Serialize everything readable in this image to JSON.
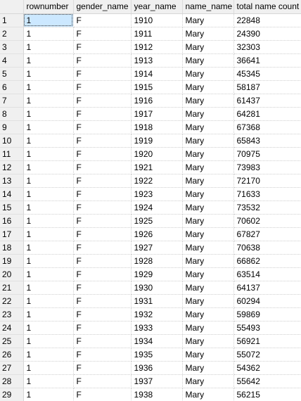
{
  "columns": [
    "rownumber",
    "gender_name",
    "year_name",
    "name_name",
    "total name count"
  ],
  "rows": [
    {
      "row_header": "1",
      "rownumber": "1",
      "gender_name": "F",
      "year_name": "1910",
      "name_name": "Mary",
      "total_name_count": "22848"
    },
    {
      "row_header": "2",
      "rownumber": "1",
      "gender_name": "F",
      "year_name": "1911",
      "name_name": "Mary",
      "total_name_count": "24390"
    },
    {
      "row_header": "3",
      "rownumber": "1",
      "gender_name": "F",
      "year_name": "1912",
      "name_name": "Mary",
      "total_name_count": "32303"
    },
    {
      "row_header": "4",
      "rownumber": "1",
      "gender_name": "F",
      "year_name": "1913",
      "name_name": "Mary",
      "total_name_count": "36641"
    },
    {
      "row_header": "5",
      "rownumber": "1",
      "gender_name": "F",
      "year_name": "1914",
      "name_name": "Mary",
      "total_name_count": "45345"
    },
    {
      "row_header": "6",
      "rownumber": "1",
      "gender_name": "F",
      "year_name": "1915",
      "name_name": "Mary",
      "total_name_count": "58187"
    },
    {
      "row_header": "7",
      "rownumber": "1",
      "gender_name": "F",
      "year_name": "1916",
      "name_name": "Mary",
      "total_name_count": "61437"
    },
    {
      "row_header": "8",
      "rownumber": "1",
      "gender_name": "F",
      "year_name": "1917",
      "name_name": "Mary",
      "total_name_count": "64281"
    },
    {
      "row_header": "9",
      "rownumber": "1",
      "gender_name": "F",
      "year_name": "1918",
      "name_name": "Mary",
      "total_name_count": "67368"
    },
    {
      "row_header": "10",
      "rownumber": "1",
      "gender_name": "F",
      "year_name": "1919",
      "name_name": "Mary",
      "total_name_count": "65843"
    },
    {
      "row_header": "11",
      "rownumber": "1",
      "gender_name": "F",
      "year_name": "1920",
      "name_name": "Mary",
      "total_name_count": "70975"
    },
    {
      "row_header": "12",
      "rownumber": "1",
      "gender_name": "F",
      "year_name": "1921",
      "name_name": "Mary",
      "total_name_count": "73983"
    },
    {
      "row_header": "13",
      "rownumber": "1",
      "gender_name": "F",
      "year_name": "1922",
      "name_name": "Mary",
      "total_name_count": "72170"
    },
    {
      "row_header": "14",
      "rownumber": "1",
      "gender_name": "F",
      "year_name": "1923",
      "name_name": "Mary",
      "total_name_count": "71633"
    },
    {
      "row_header": "15",
      "rownumber": "1",
      "gender_name": "F",
      "year_name": "1924",
      "name_name": "Mary",
      "total_name_count": "73532"
    },
    {
      "row_header": "16",
      "rownumber": "1",
      "gender_name": "F",
      "year_name": "1925",
      "name_name": "Mary",
      "total_name_count": "70602"
    },
    {
      "row_header": "17",
      "rownumber": "1",
      "gender_name": "F",
      "year_name": "1926",
      "name_name": "Mary",
      "total_name_count": "67827"
    },
    {
      "row_header": "18",
      "rownumber": "1",
      "gender_name": "F",
      "year_name": "1927",
      "name_name": "Mary",
      "total_name_count": "70638"
    },
    {
      "row_header": "19",
      "rownumber": "1",
      "gender_name": "F",
      "year_name": "1928",
      "name_name": "Mary",
      "total_name_count": "66862"
    },
    {
      "row_header": "20",
      "rownumber": "1",
      "gender_name": "F",
      "year_name": "1929",
      "name_name": "Mary",
      "total_name_count": "63514"
    },
    {
      "row_header": "21",
      "rownumber": "1",
      "gender_name": "F",
      "year_name": "1930",
      "name_name": "Mary",
      "total_name_count": "64137"
    },
    {
      "row_header": "22",
      "rownumber": "1",
      "gender_name": "F",
      "year_name": "1931",
      "name_name": "Mary",
      "total_name_count": "60294"
    },
    {
      "row_header": "23",
      "rownumber": "1",
      "gender_name": "F",
      "year_name": "1932",
      "name_name": "Mary",
      "total_name_count": "59869"
    },
    {
      "row_header": "24",
      "rownumber": "1",
      "gender_name": "F",
      "year_name": "1933",
      "name_name": "Mary",
      "total_name_count": "55493"
    },
    {
      "row_header": "25",
      "rownumber": "1",
      "gender_name": "F",
      "year_name": "1934",
      "name_name": "Mary",
      "total_name_count": "56921"
    },
    {
      "row_header": "26",
      "rownumber": "1",
      "gender_name": "F",
      "year_name": "1935",
      "name_name": "Mary",
      "total_name_count": "55072"
    },
    {
      "row_header": "27",
      "rownumber": "1",
      "gender_name": "F",
      "year_name": "1936",
      "name_name": "Mary",
      "total_name_count": "54362"
    },
    {
      "row_header": "28",
      "rownumber": "1",
      "gender_name": "F",
      "year_name": "1937",
      "name_name": "Mary",
      "total_name_count": "55642"
    },
    {
      "row_header": "29",
      "rownumber": "1",
      "gender_name": "F",
      "year_name": "1938",
      "name_name": "Mary",
      "total_name_count": "56215"
    }
  ],
  "selected_cell": {
    "row": 0,
    "column": "rownumber"
  },
  "colors": {
    "header_bg": "#f0f0f0",
    "selected_bg": "#cce8ff",
    "grid_line": "#cfcfcf"
  }
}
